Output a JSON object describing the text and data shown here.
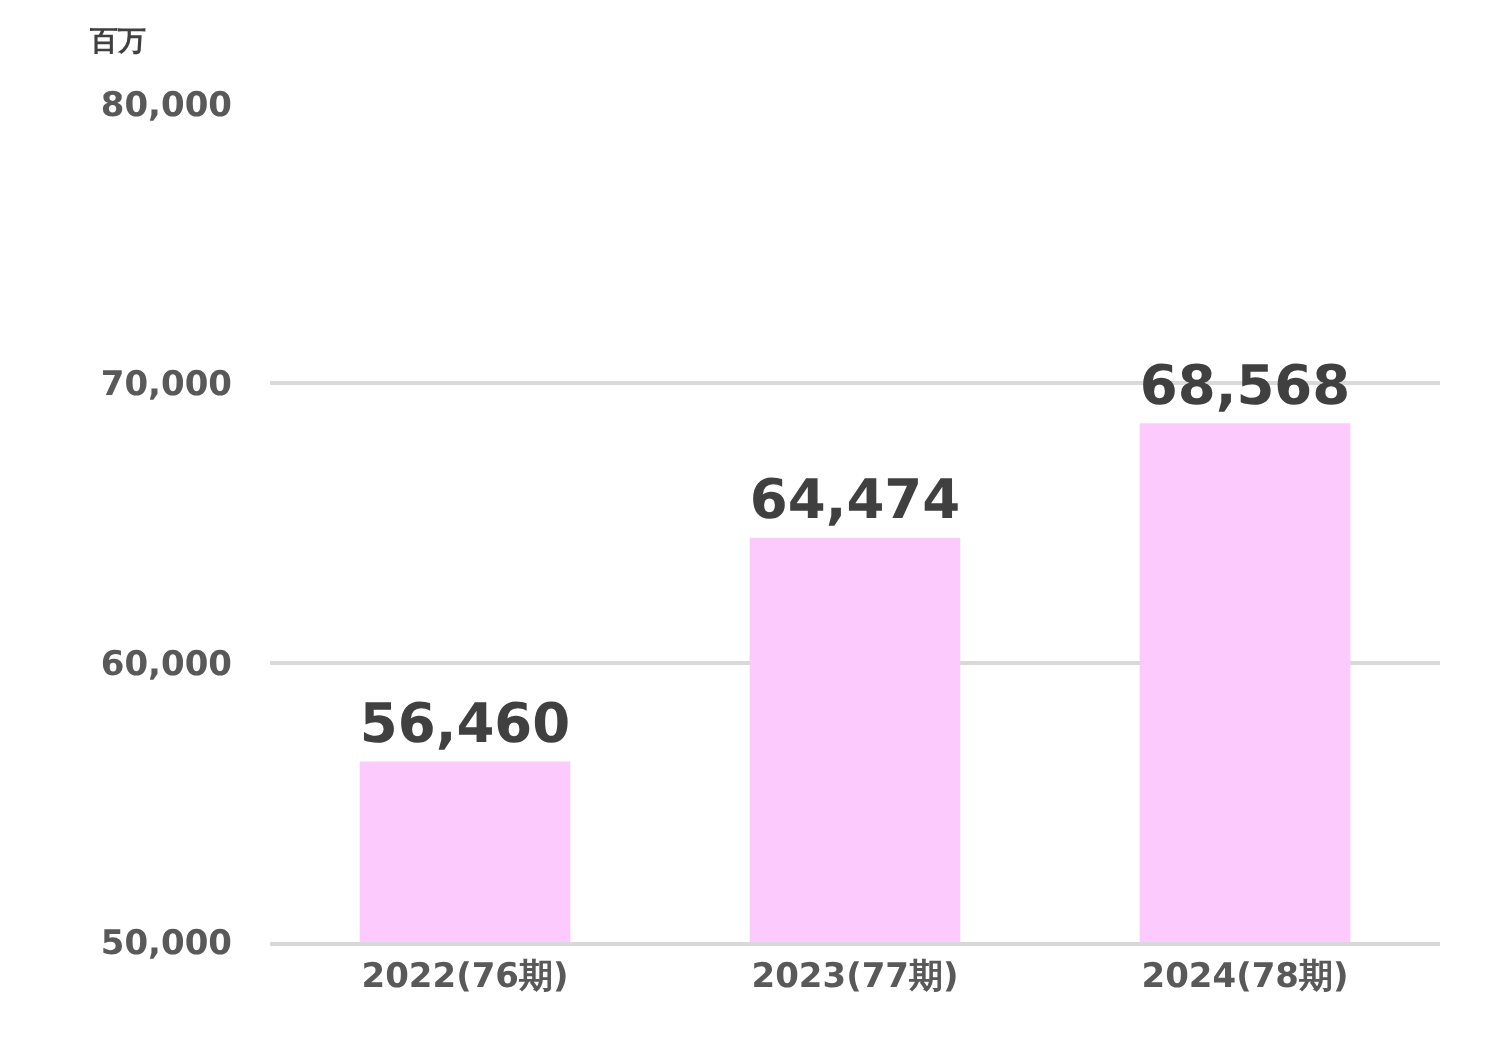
{
  "chart_data": {
    "type": "bar",
    "ylabel": "百万",
    "categories": [
      "2022(76期)",
      "2023(77期)",
      "2024(78期)"
    ],
    "values": [
      56460,
      64474,
      68568
    ],
    "color": "#fccafc",
    "value_labels": [
      "56,460",
      "64,474",
      "68,568"
    ],
    "ylim": [
      50000,
      80000
    ],
    "yticks": [
      {
        "value": 50000,
        "label": "50,000"
      },
      {
        "value": 60000,
        "label": "60,000"
      },
      {
        "value": 70000,
        "label": "70,000"
      },
      {
        "value": 80000,
        "label": "80,000"
      }
    ],
    "grid": "y"
  }
}
